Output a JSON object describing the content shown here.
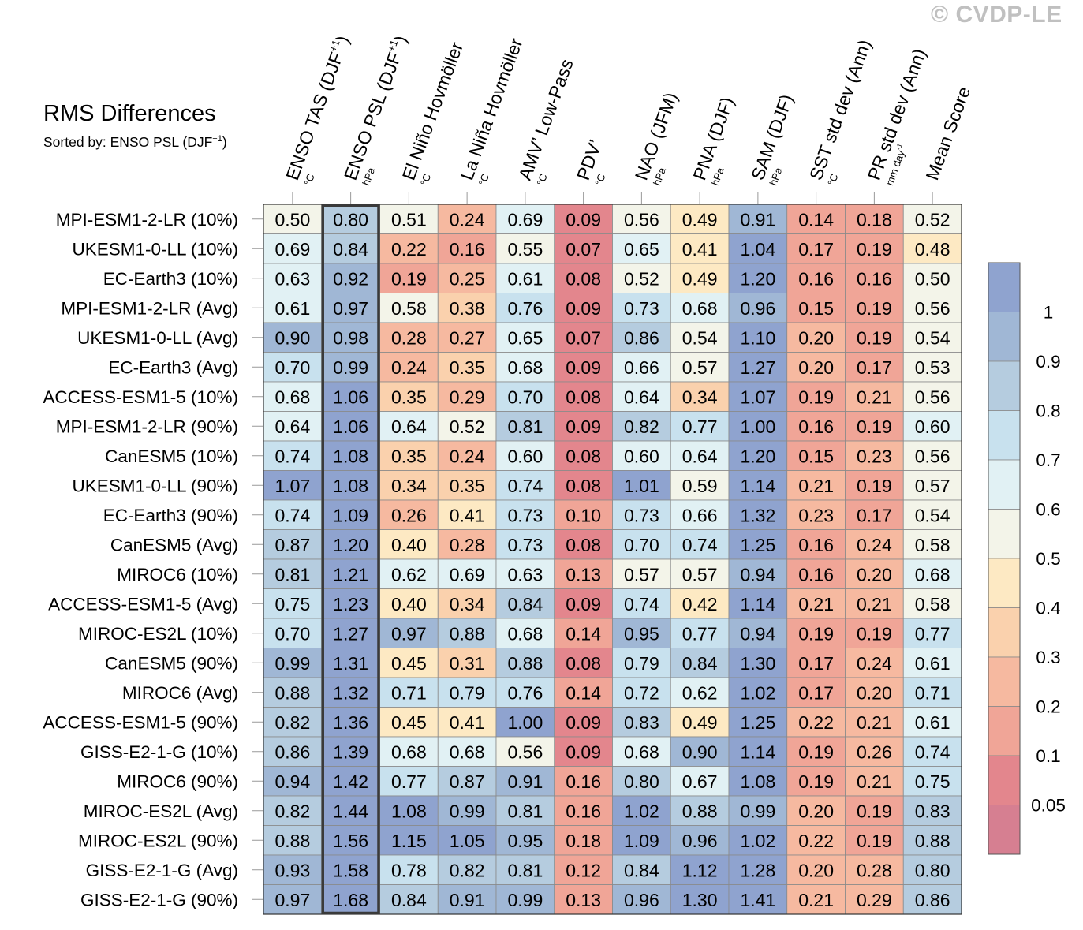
{
  "watermark": "© CVDP-LE",
  "title": "RMS Differences",
  "subtitle_prefix": "Sorted by: ENSO PSL (DJF",
  "subtitle_sup": "+1",
  "subtitle_suffix": ")",
  "chart_data": {
    "type": "heatmap",
    "columns": [
      {
        "label": "ENSO TAS (DJF",
        "sup": "+1",
        "label_end": ")",
        "unit": "°C"
      },
      {
        "label": "ENSO PSL (DJF",
        "sup": "+1",
        "label_end": ")",
        "unit": "hPa"
      },
      {
        "label": "El Niño Hovmöller",
        "unit": "°C"
      },
      {
        "label": "La Niña Hovmöller",
        "unit": "°C"
      },
      {
        "label": "AMV’ Low-Pass",
        "unit": "°C"
      },
      {
        "label": "PDV’",
        "unit": "°C"
      },
      {
        "label": "NAO (JFM)",
        "unit": "hPa"
      },
      {
        "label": "PNA (DJF)",
        "unit": "hPa"
      },
      {
        "label": "SAM (DJF)",
        "unit": "hPa"
      },
      {
        "label": "SST std dev (Ann)",
        "unit": "°C"
      },
      {
        "label": "PR std dev (Ann)",
        "unit": "mm day",
        "unit_sup": "-1"
      },
      {
        "label": "Mean Score",
        "unit": ""
      }
    ],
    "rows": [
      "MPI-ESM1-2-LR (10%)",
      "UKESM1-0-LL (10%)",
      "EC-Earth3 (10%)",
      "MPI-ESM1-2-LR (Avg)",
      "UKESM1-0-LL (Avg)",
      "EC-Earth3 (Avg)",
      "ACCESS-ESM1-5 (10%)",
      "MPI-ESM1-2-LR (90%)",
      "CanESM5 (10%)",
      "UKESM1-0-LL (90%)",
      "EC-Earth3 (90%)",
      "CanESM5 (Avg)",
      "MIROC6 (10%)",
      "ACCESS-ESM1-5 (Avg)",
      "MIROC-ES2L (10%)",
      "CanESM5 (90%)",
      "MIROC6 (Avg)",
      "ACCESS-ESM1-5 (90%)",
      "GISS-E2-1-G (10%)",
      "MIROC6 (90%)",
      "MIROC-ES2L (Avg)",
      "MIROC-ES2L (90%)",
      "GISS-E2-1-G (Avg)",
      "GISS-E2-1-G (90%)"
    ],
    "values": [
      [
        0.5,
        0.8,
        0.51,
        0.24,
        0.69,
        0.09,
        0.56,
        0.49,
        0.91,
        0.14,
        0.18,
        0.52
      ],
      [
        0.69,
        0.84,
        0.22,
        0.16,
        0.55,
        0.07,
        0.65,
        0.41,
        1.04,
        0.17,
        0.19,
        0.48
      ],
      [
        0.63,
        0.92,
        0.19,
        0.25,
        0.61,
        0.08,
        0.52,
        0.49,
        1.2,
        0.16,
        0.16,
        0.5
      ],
      [
        0.61,
        0.97,
        0.58,
        0.38,
        0.76,
        0.09,
        0.73,
        0.68,
        0.96,
        0.15,
        0.19,
        0.56
      ],
      [
        0.9,
        0.98,
        0.28,
        0.27,
        0.65,
        0.07,
        0.86,
        0.54,
        1.1,
        0.2,
        0.19,
        0.54
      ],
      [
        0.7,
        0.99,
        0.24,
        0.35,
        0.68,
        0.09,
        0.66,
        0.57,
        1.27,
        0.2,
        0.17,
        0.53
      ],
      [
        0.68,
        1.06,
        0.35,
        0.29,
        0.7,
        0.08,
        0.64,
        0.34,
        1.07,
        0.19,
        0.21,
        0.56
      ],
      [
        0.64,
        1.06,
        0.64,
        0.52,
        0.81,
        0.09,
        0.82,
        0.77,
        1.0,
        0.16,
        0.19,
        0.6
      ],
      [
        0.74,
        1.08,
        0.35,
        0.24,
        0.6,
        0.08,
        0.6,
        0.64,
        1.2,
        0.15,
        0.23,
        0.56
      ],
      [
        1.07,
        1.08,
        0.34,
        0.35,
        0.74,
        0.08,
        1.01,
        0.59,
        1.14,
        0.21,
        0.19,
        0.57
      ],
      [
        0.74,
        1.09,
        0.26,
        0.41,
        0.73,
        0.1,
        0.73,
        0.66,
        1.32,
        0.23,
        0.17,
        0.54
      ],
      [
        0.87,
        1.2,
        0.4,
        0.28,
        0.73,
        0.08,
        0.7,
        0.74,
        1.25,
        0.16,
        0.24,
        0.58
      ],
      [
        0.81,
        1.21,
        0.62,
        0.69,
        0.63,
        0.13,
        0.57,
        0.57,
        0.94,
        0.16,
        0.2,
        0.68
      ],
      [
        0.75,
        1.23,
        0.4,
        0.34,
        0.84,
        0.09,
        0.74,
        0.42,
        1.14,
        0.21,
        0.21,
        0.58
      ],
      [
        0.7,
        1.27,
        0.97,
        0.88,
        0.68,
        0.14,
        0.95,
        0.77,
        0.94,
        0.19,
        0.19,
        0.77
      ],
      [
        0.99,
        1.31,
        0.45,
        0.31,
        0.88,
        0.08,
        0.79,
        0.84,
        1.3,
        0.17,
        0.24,
        0.61
      ],
      [
        0.88,
        1.32,
        0.71,
        0.79,
        0.76,
        0.14,
        0.72,
        0.62,
        1.02,
        0.17,
        0.2,
        0.71
      ],
      [
        0.82,
        1.36,
        0.45,
        0.41,
        1.0,
        0.09,
        0.83,
        0.49,
        1.25,
        0.22,
        0.21,
        0.61
      ],
      [
        0.86,
        1.39,
        0.68,
        0.68,
        0.56,
        0.09,
        0.68,
        0.9,
        1.14,
        0.19,
        0.26,
        0.74
      ],
      [
        0.94,
        1.42,
        0.77,
        0.87,
        0.91,
        0.16,
        0.8,
        0.67,
        1.08,
        0.19,
        0.21,
        0.75
      ],
      [
        0.82,
        1.44,
        1.08,
        0.99,
        0.81,
        0.16,
        1.02,
        0.88,
        0.99,
        0.2,
        0.19,
        0.83
      ],
      [
        0.88,
        1.56,
        1.15,
        1.05,
        0.95,
        0.18,
        1.09,
        0.96,
        1.02,
        0.22,
        0.19,
        0.88
      ],
      [
        0.93,
        1.58,
        0.78,
        0.82,
        0.81,
        0.12,
        0.84,
        1.12,
        1.28,
        0.2,
        0.28,
        0.8
      ],
      [
        0.97,
        1.68,
        0.84,
        0.91,
        0.99,
        0.13,
        0.96,
        1.3,
        1.41,
        0.21,
        0.29,
        0.86
      ]
    ],
    "highlight_column": "ENSO PSL (DJF+1)",
    "colorbar": {
      "tick_labels": [
        "1",
        "0.9",
        "0.8",
        "0.7",
        "0.6",
        "0.5",
        "0.4",
        "0.3",
        "0.2",
        "0.1",
        "0.05"
      ],
      "thresholds": [
        0.05,
        0.1,
        0.2,
        0.3,
        0.4,
        0.5,
        0.6,
        0.7,
        0.8,
        0.9,
        1.0
      ],
      "colors": [
        "#d67f91",
        "#e3868d",
        "#f0a597",
        "#f6b9a0",
        "#fad1ad",
        "#fde9c3",
        "#f3f4e9",
        "#e1f1f4",
        "#c8e1ee",
        "#b5ccdf",
        "#a0b7d5",
        "#8fa3cf"
      ]
    }
  }
}
